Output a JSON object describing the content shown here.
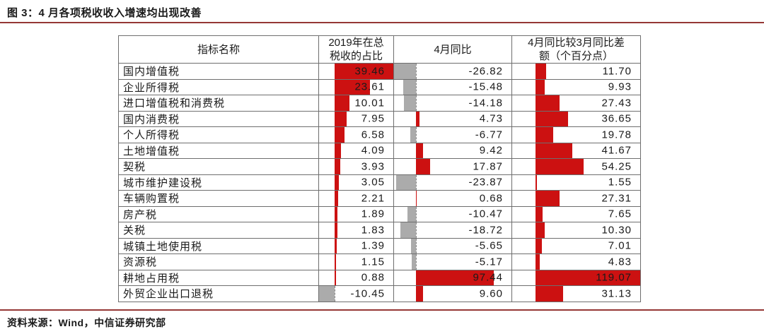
{
  "figure": {
    "title": "图 3：4 月各项税收收入增速均出现改善",
    "source": "资料来源：Wind，中信证券研究部"
  },
  "colors": {
    "accent_rule": "#953735",
    "bar_positive": "#cc1111",
    "bar_negative": "#ababab",
    "grid_line": "#6e6e6e"
  },
  "table": {
    "headers": [
      "指标名称",
      "2019年在总\n税收的占比",
      "4月同比",
      "4月同比较3月同比差\n额（个百分点）"
    ]
  },
  "chart_data": {
    "type": "table",
    "subtype": "table-with-data-bars",
    "title": "图 3：4 月各项税收收入增速均出现改善",
    "columns": [
      "指标名称",
      "2019年在总税收的占比",
      "4月同比",
      "4月同比较3月同比差额（个百分点）"
    ],
    "rows": [
      {
        "name": "国内增值税",
        "share": 39.46,
        "yoy": -26.82,
        "diff": 11.7
      },
      {
        "name": "企业所得税",
        "share": 23.61,
        "yoy": -15.48,
        "diff": 9.93
      },
      {
        "name": "进口增值税和消费税",
        "share": 10.01,
        "yoy": -14.18,
        "diff": 27.43
      },
      {
        "name": "国内消费税",
        "share": 7.95,
        "yoy": 4.73,
        "diff": 36.65
      },
      {
        "name": "个人所得税",
        "share": 6.58,
        "yoy": -6.77,
        "diff": 19.78
      },
      {
        "name": "土地增值税",
        "share": 4.09,
        "yoy": 9.42,
        "diff": 41.67
      },
      {
        "name": "契税",
        "share": 3.93,
        "yoy": 17.87,
        "diff": 54.25
      },
      {
        "name": "城市维护建设税",
        "share": 3.05,
        "yoy": -23.87,
        "diff": 1.55
      },
      {
        "name": "车辆购置税",
        "share": 2.21,
        "yoy": 0.68,
        "diff": 27.31
      },
      {
        "name": "房产税",
        "share": 1.89,
        "yoy": -10.47,
        "diff": 7.65
      },
      {
        "name": "关税",
        "share": 1.83,
        "yoy": -18.72,
        "diff": 10.3
      },
      {
        "name": "城镇土地使用税",
        "share": 1.39,
        "yoy": -5.65,
        "diff": 7.01
      },
      {
        "name": "资源税",
        "share": 1.15,
        "yoy": -5.17,
        "diff": 4.83
      },
      {
        "name": "耕地占用税",
        "share": 0.88,
        "yoy": 97.44,
        "diff": 119.07
      },
      {
        "name": "外贸企业出口退税",
        "share": -10.45,
        "yoy": 9.6,
        "diff": 31.13
      }
    ],
    "bar_scales": {
      "share": {
        "min": -10.45,
        "max": 39.46
      },
      "yoy": {
        "min": -26.82,
        "max": 119.07
      },
      "diff": {
        "min": -26.82,
        "max": 119.07
      }
    },
    "legend_position": "none",
    "grid": true,
    "bar_semantics": "red bar = positive value, gray bar = negative value, dashed line = zero axis"
  }
}
